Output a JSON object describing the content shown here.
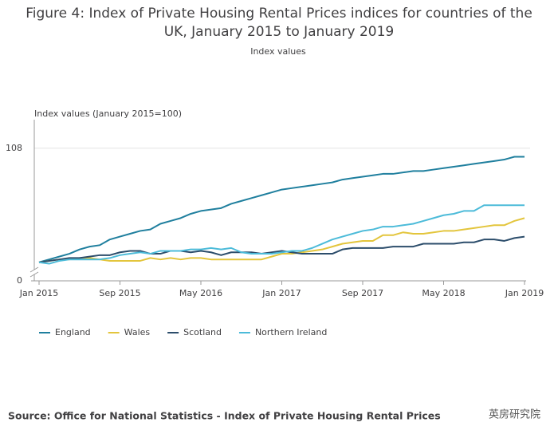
{
  "chart_data": {
    "type": "line",
    "title": "Figure 4: Index of Private Housing Rental Prices indices for countries of the UK, January 2015 to January 2019",
    "subtitle": "Index values",
    "y_label": "Index values (January 2015=100)",
    "source": "Source: Office for National Statistics - Index of Private Housing Rental Prices",
    "watermark": "英房研究院",
    "categories": [
      "Jan 2015",
      null,
      null,
      null,
      null,
      null,
      null,
      null,
      "Sep 2015",
      null,
      null,
      null,
      null,
      null,
      null,
      null,
      "May 2016",
      null,
      null,
      null,
      null,
      null,
      null,
      null,
      "Jan 2017",
      null,
      null,
      null,
      null,
      null,
      null,
      null,
      "Sep 2017",
      null,
      null,
      null,
      null,
      null,
      null,
      null,
      "May 2018",
      null,
      null,
      null,
      null,
      null,
      null,
      null,
      "Jan 2019"
    ],
    "ylim": [
      98.7,
      110
    ],
    "yticks": [
      0,
      108
    ],
    "y_break": true,
    "grid": true,
    "legend": "bottom",
    "series": [
      {
        "name": "England",
        "color": "#1f7f9e",
        "values": [
          100.0,
          100.2,
          100.4,
          100.6,
          100.9,
          101.1,
          101.2,
          101.6,
          101.8,
          102.0,
          102.2,
          102.3,
          102.7,
          102.9,
          103.1,
          103.4,
          103.6,
          103.7,
          103.8,
          104.1,
          104.3,
          104.5,
          104.7,
          104.9,
          105.1,
          105.2,
          105.3,
          105.4,
          105.5,
          105.6,
          105.8,
          105.9,
          106.0,
          106.1,
          106.2,
          106.2,
          106.3,
          106.4,
          106.4,
          106.5,
          106.6,
          106.7,
          106.8,
          106.9,
          107.0,
          107.1,
          107.2,
          107.4,
          107.4
        ]
      },
      {
        "name": "Wales",
        "color": "#e3c53c",
        "values": [
          100.0,
          100.1,
          100.2,
          100.2,
          100.3,
          100.3,
          100.2,
          100.1,
          100.1,
          100.1,
          100.1,
          100.3,
          100.2,
          100.3,
          100.2,
          100.3,
          100.3,
          100.2,
          100.2,
          100.2,
          100.2,
          100.2,
          100.2,
          100.4,
          100.6,
          100.6,
          100.7,
          100.8,
          100.9,
          101.1,
          101.3,
          101.4,
          101.5,
          101.5,
          101.9,
          101.9,
          102.1,
          102.0,
          102.0,
          102.1,
          102.2,
          102.2,
          102.3,
          102.4,
          102.5,
          102.6,
          102.6,
          102.9,
          103.1
        ]
      },
      {
        "name": "Scotland",
        "color": "#2c4d6b",
        "values": [
          100.0,
          100.1,
          100.2,
          100.3,
          100.3,
          100.4,
          100.5,
          100.5,
          100.7,
          100.8,
          100.8,
          100.6,
          100.6,
          100.8,
          100.8,
          100.7,
          100.8,
          100.7,
          100.5,
          100.7,
          100.7,
          100.7,
          100.6,
          100.7,
          100.8,
          100.7,
          100.6,
          100.6,
          100.6,
          100.6,
          100.9,
          101.0,
          101.0,
          101.0,
          101.0,
          101.1,
          101.1,
          101.1,
          101.3,
          101.3,
          101.3,
          101.3,
          101.4,
          101.4,
          101.6,
          101.6,
          101.5,
          101.7,
          101.8
        ]
      },
      {
        "name": "Northern Ireland",
        "color": "#4cbbd9",
        "values": [
          100.0,
          99.9,
          100.1,
          100.2,
          100.2,
          100.2,
          100.2,
          100.3,
          100.5,
          100.6,
          100.7,
          100.6,
          100.8,
          100.8,
          100.8,
          100.9,
          100.9,
          101.0,
          100.9,
          101.0,
          100.7,
          100.6,
          100.6,
          100.6,
          100.7,
          100.8,
          100.8,
          101.0,
          101.3,
          101.6,
          101.8,
          102.0,
          102.2,
          102.3,
          102.5,
          102.5,
          102.6,
          102.7,
          102.9,
          103.1,
          103.3,
          103.4,
          103.6,
          103.6,
          104.0,
          104.0,
          104.0,
          104.0,
          104.0
        ]
      }
    ]
  }
}
